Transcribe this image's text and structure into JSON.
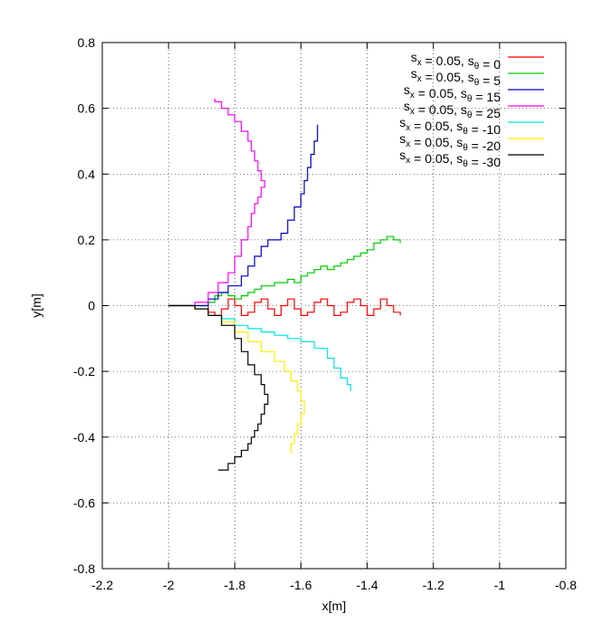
{
  "chart_data": {
    "type": "line",
    "xlabel": "x[m]",
    "ylabel": "y[m]",
    "xlim": [
      -2.2,
      -0.8
    ],
    "ylim": [
      -0.8,
      0.8
    ],
    "xticks": [
      "-2.2",
      "-2",
      "-1.8",
      "-1.6",
      "-1.4",
      "-1.2",
      "-1",
      "-0.8"
    ],
    "yticks": [
      "0.8",
      "0.6",
      "0.4",
      "0.2",
      "0",
      "-0.2",
      "-0.4",
      "-0.6",
      "-0.8"
    ],
    "grid": true,
    "legend_position": "top-right",
    "series": [
      {
        "name": "s_x = 0.05, s_θ = 0",
        "legend": {
          "a": "s",
          "as": "x",
          "b": " = 0.05, ",
          "c": "s",
          "cs": "θ",
          "d": " = 0"
        },
        "color": "#ff0000",
        "x": [
          -2.0,
          -1.95,
          -1.9,
          -1.88,
          -1.86,
          -1.84,
          -1.82,
          -1.8,
          -1.78,
          -1.76,
          -1.74,
          -1.72,
          -1.7,
          -1.68,
          -1.66,
          -1.64,
          -1.62,
          -1.6,
          -1.58,
          -1.56,
          -1.54,
          -1.52,
          -1.5,
          -1.48,
          -1.46,
          -1.44,
          -1.42,
          -1.4,
          -1.38,
          -1.36,
          -1.34,
          -1.32,
          -1.3
        ],
        "y": [
          0.0,
          0.0,
          0.0,
          -0.02,
          -0.03,
          -0.01,
          0.02,
          0.0,
          -0.03,
          -0.02,
          0.01,
          0.02,
          -0.01,
          -0.03,
          0.0,
          0.02,
          -0.01,
          -0.03,
          -0.02,
          0.01,
          0.02,
          0.0,
          -0.03,
          -0.02,
          0.01,
          0.02,
          0.0,
          -0.03,
          -0.01,
          0.02,
          0.0,
          -0.02,
          -0.03
        ]
      },
      {
        "name": "s_x = 0.05, s_θ = 5",
        "legend": {
          "a": "s",
          "as": "x",
          "b": " = 0.05, ",
          "c": "s",
          "cs": "θ",
          "d": " = 5"
        },
        "color": "#00cc00",
        "x": [
          -2.0,
          -1.95,
          -1.9,
          -1.88,
          -1.86,
          -1.84,
          -1.82,
          -1.8,
          -1.78,
          -1.76,
          -1.74,
          -1.72,
          -1.7,
          -1.68,
          -1.66,
          -1.64,
          -1.62,
          -1.6,
          -1.58,
          -1.56,
          -1.54,
          -1.52,
          -1.5,
          -1.48,
          -1.46,
          -1.44,
          -1.42,
          -1.4,
          -1.38,
          -1.36,
          -1.34,
          -1.32,
          -1.3
        ],
        "y": [
          0.0,
          0.0,
          0.0,
          0.01,
          0.03,
          0.04,
          0.03,
          0.02,
          0.03,
          0.04,
          0.05,
          0.06,
          0.06,
          0.07,
          0.07,
          0.08,
          0.07,
          0.09,
          0.1,
          0.11,
          0.12,
          0.11,
          0.12,
          0.13,
          0.14,
          0.15,
          0.16,
          0.17,
          0.19,
          0.2,
          0.21,
          0.2,
          0.19
        ]
      },
      {
        "name": "s_x = 0.05, s_θ = 15",
        "legend": {
          "a": "s",
          "as": "x",
          "b": " = 0.05, ",
          "c": "s",
          "cs": "θ",
          "d": " = 15"
        },
        "color": "#0000cc",
        "x": [
          -2.0,
          -1.96,
          -1.92,
          -1.88,
          -1.85,
          -1.82,
          -1.78,
          -1.76,
          -1.74,
          -1.72,
          -1.7,
          -1.68,
          -1.66,
          -1.64,
          -1.62,
          -1.6,
          -1.59,
          -1.58,
          -1.57,
          -1.56,
          -1.55
        ],
        "y": [
          0.0,
          0.0,
          0.0,
          0.02,
          0.04,
          0.06,
          0.09,
          0.12,
          0.15,
          0.18,
          0.2,
          0.2,
          0.22,
          0.26,
          0.3,
          0.34,
          0.38,
          0.42,
          0.46,
          0.5,
          0.55
        ]
      },
      {
        "name": "s_x = 0.05, s_θ = 25",
        "legend": {
          "a": "s",
          "as": "x",
          "b": " = 0.05, ",
          "c": "s",
          "cs": "θ",
          "d": " = 25"
        },
        "color": "#ff00ff",
        "x": [
          -2.0,
          -1.96,
          -1.92,
          -1.88,
          -1.85,
          -1.82,
          -1.8,
          -1.78,
          -1.76,
          -1.75,
          -1.74,
          -1.73,
          -1.72,
          -1.71,
          -1.72,
          -1.73,
          -1.74,
          -1.75,
          -1.76,
          -1.78,
          -1.8,
          -1.82,
          -1.84,
          -1.86
        ],
        "y": [
          0.0,
          0.0,
          0.01,
          0.04,
          0.07,
          0.1,
          0.15,
          0.2,
          0.24,
          0.28,
          0.31,
          0.33,
          0.36,
          0.38,
          0.41,
          0.44,
          0.47,
          0.5,
          0.53,
          0.56,
          0.58,
          0.6,
          0.62,
          0.63
        ]
      },
      {
        "name": "s_x = 0.05, s_θ = -10",
        "legend": {
          "a": "s",
          "as": "x",
          "b": " = 0.05, ",
          "c": "s",
          "cs": "θ",
          "d": " = -10"
        },
        "color": "#00e5e5",
        "x": [
          -2.0,
          -1.96,
          -1.92,
          -1.88,
          -1.84,
          -1.8,
          -1.76,
          -1.72,
          -1.68,
          -1.64,
          -1.6,
          -1.56,
          -1.52,
          -1.5,
          -1.48,
          -1.46,
          -1.45
        ],
        "y": [
          0.0,
          0.0,
          -0.01,
          -0.03,
          -0.04,
          -0.06,
          -0.07,
          -0.08,
          -0.09,
          -0.1,
          -0.11,
          -0.13,
          -0.16,
          -0.19,
          -0.22,
          -0.24,
          -0.26
        ]
      },
      {
        "name": "s_x = 0.05, s_θ = -20",
        "legend": {
          "a": "s",
          "as": "x",
          "b": " = 0.05, ",
          "c": "s",
          "cs": "θ",
          "d": " = -20"
        },
        "color": "#ffee00",
        "x": [
          -2.0,
          -1.96,
          -1.92,
          -1.88,
          -1.84,
          -1.8,
          -1.76,
          -1.72,
          -1.68,
          -1.65,
          -1.63,
          -1.61,
          -1.6,
          -1.59,
          -1.6,
          -1.61,
          -1.62,
          -1.63
        ],
        "y": [
          0.0,
          0.0,
          -0.01,
          -0.03,
          -0.05,
          -0.08,
          -0.11,
          -0.14,
          -0.17,
          -0.2,
          -0.23,
          -0.26,
          -0.29,
          -0.33,
          -0.36,
          -0.39,
          -0.42,
          -0.45
        ]
      },
      {
        "name": "s_x = 0.05, s_θ = -30",
        "legend": {
          "a": "s",
          "as": "x",
          "b": " = 0.05, ",
          "c": "s",
          "cs": "θ",
          "d": " = -30"
        },
        "color": "#000000",
        "x": [
          -2.0,
          -1.96,
          -1.92,
          -1.88,
          -1.84,
          -1.8,
          -1.78,
          -1.76,
          -1.74,
          -1.72,
          -1.71,
          -1.7,
          -1.71,
          -1.72,
          -1.73,
          -1.74,
          -1.75,
          -1.76,
          -1.78,
          -1.8,
          -1.82,
          -1.84,
          -1.85
        ],
        "y": [
          0.0,
          0.0,
          -0.01,
          -0.03,
          -0.06,
          -0.1,
          -0.14,
          -0.18,
          -0.21,
          -0.24,
          -0.27,
          -0.3,
          -0.33,
          -0.36,
          -0.38,
          -0.4,
          -0.42,
          -0.44,
          -0.46,
          -0.48,
          -0.5,
          -0.5,
          -0.5
        ]
      }
    ]
  }
}
